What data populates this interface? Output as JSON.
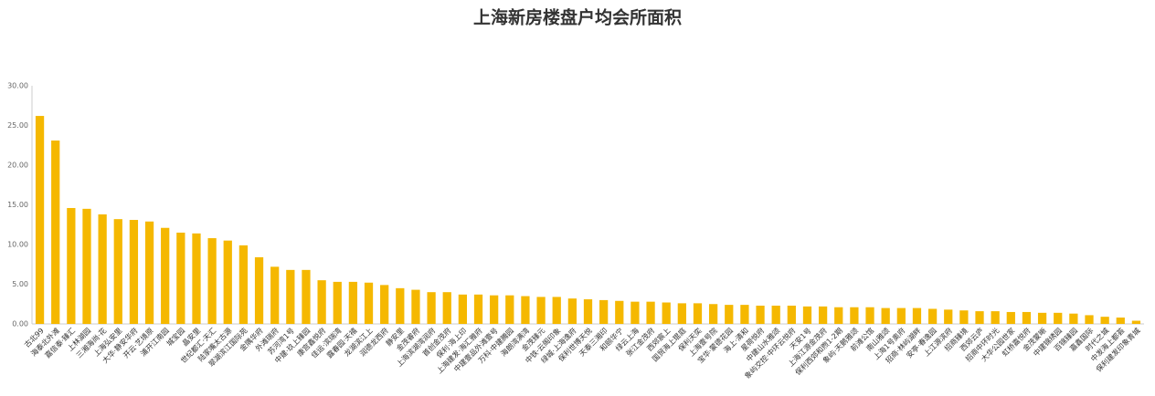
{
  "chart_data": {
    "type": "bar",
    "title": "上海新房楼盘户均会所面积",
    "categories": [
      "古北99",
      "海泰北外滩",
      "嘉信泰·臻汇",
      "上林湖园",
      "三湘海尚·花",
      "上海弘安里",
      "大华·静安华府",
      "开云·艺境原",
      "浦开江南园",
      "城宝园",
      "晶安里",
      "世纪都汇·天汇",
      "陆家嘴太古源",
      "翠湖滨江国际苑",
      "金隅华府",
      "外滩瑞府",
      "苏河湾1号",
      "中建·玖上臻园",
      "康宫鑫悦府",
      "佳运·滨瑞湾",
      "露春园·天禧",
      "龙湖滨江上",
      "润德龙西府",
      "静安里",
      "金茂睿府",
      "上海滨湖湾润府",
      "首创金茂府",
      "保利·海上印",
      "上海建发·海汇雅府",
      "中建壹品外滩壹号",
      "万科·中建腾园",
      "海朗湾满湾",
      "金茂臻元",
      "中铁·云阁印象",
      "绿城·上海逸府",
      "保利世博天悦",
      "天泰三湘印",
      "和颐华宁",
      "绿云上海",
      "张江金茂府",
      "西郊宸上",
      "国贸海上琨庭",
      "保利天奕",
      "上海壹号院",
      "宝华·蒙德花园",
      "海上·清和",
      "星荷悦府",
      "中建山水雅颂",
      "象屿交控·中环云悦府",
      "天安1号",
      "上海江源金茂府",
      "保利西郊和煦1-2期",
      "象屿·天鹅雅颂",
      "前滩公馆",
      "南山雅颂",
      "上海1号奥府",
      "招商·林屿湖畔",
      "安亭·春逸园",
      "上江源滨府",
      "招商臻境",
      "西郊云庐",
      "招商中环时光",
      "大华公园世家",
      "虹桥嘉悦府",
      "金茂蒙晰",
      "中建锦绣园",
      "百锦臻园",
      "嘉鑫国际",
      "时代之城",
      "中发海上都荟",
      "保利建发印象青城"
    ],
    "values": [
      26.2,
      23.1,
      14.6,
      14.5,
      13.8,
      13.2,
      13.1,
      12.9,
      12.1,
      11.5,
      11.4,
      10.8,
      10.5,
      9.9,
      8.4,
      7.2,
      6.8,
      6.8,
      5.5,
      5.3,
      5.3,
      5.2,
      4.9,
      4.5,
      4.3,
      4.0,
      4.0,
      3.7,
      3.7,
      3.6,
      3.6,
      3.5,
      3.4,
      3.4,
      3.2,
      3.1,
      3.0,
      2.9,
      2.8,
      2.8,
      2.7,
      2.6,
      2.6,
      2.5,
      2.4,
      2.4,
      2.3,
      2.3,
      2.3,
      2.2,
      2.2,
      2.1,
      2.1,
      2.1,
      2.0,
      2.0,
      2.0,
      1.9,
      1.8,
      1.7,
      1.6,
      1.6,
      1.5,
      1.5,
      1.4,
      1.4,
      1.3,
      1.1,
      0.9,
      0.8,
      0.4
    ],
    "color": "#f5b800",
    "ylim": [
      0,
      30
    ],
    "yticks": [
      {
        "value": 0,
        "label": "0.00"
      },
      {
        "value": 5,
        "label": "5.00"
      },
      {
        "value": 10,
        "label": "10.00"
      },
      {
        "value": 15,
        "label": "15.00"
      },
      {
        "value": 20,
        "label": "20.00"
      },
      {
        "value": 25,
        "label": "25.00"
      },
      {
        "value": 30,
        "label": "30.00"
      }
    ],
    "grid": false
  }
}
